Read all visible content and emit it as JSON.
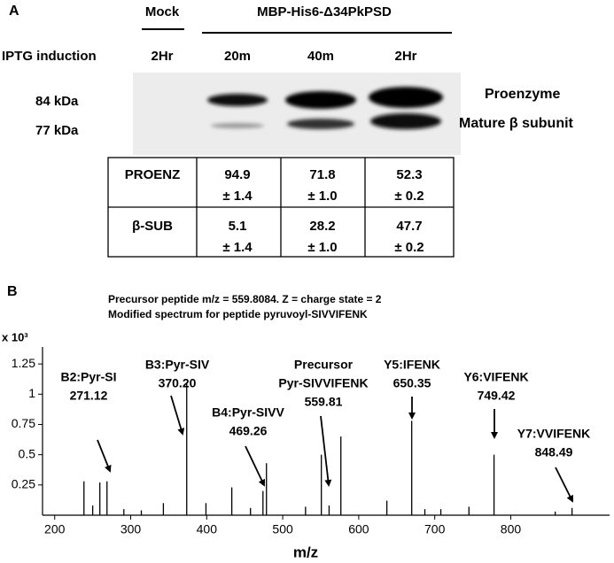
{
  "panel_a": {
    "label": "A",
    "header": {
      "mock": "Mock",
      "construct": "MBP-His6-Δ34PkPSD"
    },
    "induction_label": "IPTG induction",
    "timepoints": [
      "2Hr",
      "20m",
      "40m",
      "2Hr"
    ],
    "markers": [
      "84 kDa",
      "77 kDa"
    ],
    "band_labels": [
      "Proenzyme",
      "Mature β subunit"
    ],
    "table": {
      "rows": [
        {
          "label": "PROENZ",
          "cells": [
            {
              "mean": "94.9",
              "sd": "± 1.4"
            },
            {
              "mean": "71.8",
              "sd": "± 1.0"
            },
            {
              "mean": "52.3",
              "sd": "± 0.2"
            }
          ]
        },
        {
          "label": "β-SUB",
          "cells": [
            {
              "mean": "5.1",
              "sd": "± 1.4"
            },
            {
              "mean": "28.2",
              "sd": "± 1.0"
            },
            {
              "mean": "47.7",
              "sd": "± 0.2"
            }
          ]
        }
      ]
    }
  },
  "panel_b": {
    "label": "B",
    "notes": [
      "Precursor peptide m/z = 559.8084. Z = charge state = 2",
      "Modified spectrum for peptide pyruvoyl-SIVVIFENK"
    ]
  },
  "chart_data": {
    "type": "stem",
    "color": "#000000",
    "x_label": "m/z",
    "y_label": "x 10³",
    "x": [
      238.5,
      250,
      259.4,
      268.8,
      291,
      314,
      343,
      373.7,
      399,
      433,
      457.6,
      474,
      478.6,
      530,
      550.8,
      561,
      576.5,
      637,
      669.7,
      687,
      708,
      745,
      778,
      858.5,
      880.6
    ],
    "values": [
      0.28,
      0.08,
      0.27,
      0.28,
      0.05,
      0.04,
      0.1,
      1.09,
      0.1,
      0.23,
      0.06,
      0.2,
      0.43,
      0.07,
      0.5,
      0.08,
      0.65,
      0.12,
      0.78,
      0.05,
      0.05,
      0.07,
      0.5,
      0.03,
      0.06
    ],
    "xlim": [
      184,
      930
    ],
    "ylim": [
      0,
      1.39
    ],
    "xticks": [
      200,
      300,
      400,
      500,
      600,
      700,
      800
    ],
    "yticks": [
      0.25,
      0.5,
      0.75,
      1,
      1.25
    ],
    "annotations": [
      {
        "lines": [
          "B2:Pyr-SI",
          "271.12"
        ]
      },
      {
        "lines": [
          "B3:Pyr-SIV",
          "370.20"
        ]
      },
      {
        "lines": [
          "B4:Pyr-SIVV",
          "469.26"
        ]
      },
      {
        "lines": [
          "Precursor",
          "Pyr-SIVVIFENK",
          "559.81"
        ]
      },
      {
        "lines": [
          "Y5:IFENK",
          "650.35"
        ]
      },
      {
        "lines": [
          "Y6:VIFENK",
          "749.42"
        ]
      },
      {
        "lines": [
          "Y7:VVIFENK",
          "848.49"
        ]
      }
    ]
  }
}
